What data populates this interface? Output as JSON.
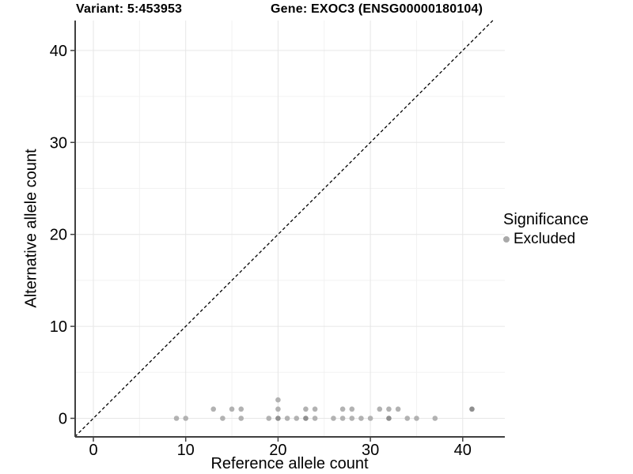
{
  "chart_data": {
    "type": "scatter",
    "title_left": "Variant: 5:453953",
    "title_right": "Gene: EXOC3 (ENSG00000180104)",
    "xlabel": "Reference allele count",
    "ylabel": "Alternative allele count",
    "x_ticks": [
      0,
      10,
      20,
      30,
      40
    ],
    "y_ticks": [
      0,
      10,
      20,
      30,
      40
    ],
    "minor_ticks": [
      5,
      15,
      25,
      35
    ],
    "xlim": [
      -2,
      44.5
    ],
    "ylim": [
      -2,
      43.3
    ],
    "grid": true,
    "identity_line": {
      "type": "dashed",
      "equation": "y = x",
      "color": "#000000"
    },
    "legend": {
      "title": "Significance",
      "position": "right",
      "items": [
        {
          "label": "Excluded",
          "color": "#a9a9a9"
        }
      ]
    },
    "series": [
      {
        "name": "Excluded",
        "points_xyn": [
          [
            9,
            0,
            1
          ],
          [
            10,
            0,
            1
          ],
          [
            13,
            1,
            1
          ],
          [
            14,
            0,
            1
          ],
          [
            15,
            1,
            1
          ],
          [
            16,
            0,
            1
          ],
          [
            16,
            1,
            1
          ],
          [
            19,
            0,
            1
          ],
          [
            20,
            0,
            2
          ],
          [
            20,
            1,
            1
          ],
          [
            20,
            2,
            1
          ],
          [
            21,
            0,
            1
          ],
          [
            22,
            0,
            1
          ],
          [
            23,
            0,
            2
          ],
          [
            23,
            1,
            1
          ],
          [
            24,
            0,
            1
          ],
          [
            24,
            1,
            1
          ],
          [
            26,
            0,
            1
          ],
          [
            27,
            0,
            1
          ],
          [
            27,
            1,
            1
          ],
          [
            28,
            0,
            1
          ],
          [
            28,
            1,
            1
          ],
          [
            29,
            0,
            1
          ],
          [
            30,
            0,
            1
          ],
          [
            31,
            1,
            1
          ],
          [
            32,
            0,
            2
          ],
          [
            32,
            1,
            1
          ],
          [
            33,
            1,
            1
          ],
          [
            34,
            0,
            1
          ],
          [
            35,
            0,
            1
          ],
          [
            37,
            0,
            1
          ],
          [
            41,
            1,
            2
          ]
        ]
      }
    ],
    "colors": {
      "point": "#b2b2b2",
      "point_overplotted": "#8f8f8f",
      "grid_major": "#e6e6e6",
      "grid_minor": "#f2f2f2",
      "axis_line": "#404040",
      "tick_text": "#000000"
    }
  }
}
